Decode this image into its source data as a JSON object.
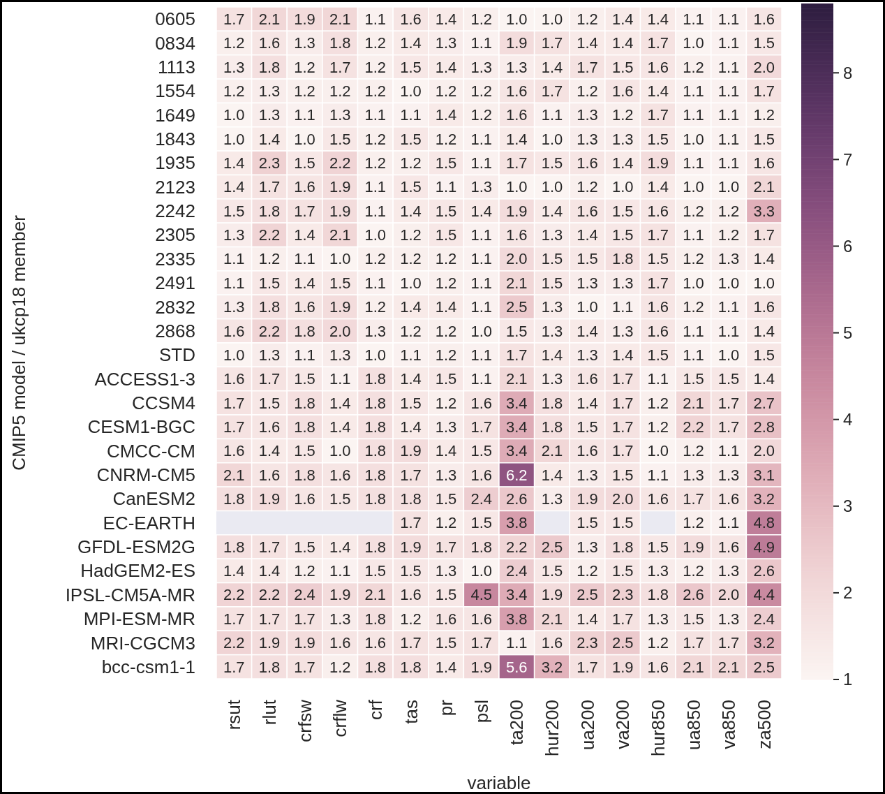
{
  "chart_data": {
    "type": "heatmap",
    "xlabel": "variable",
    "ylabel": "CMIP5 model / ukcp18 member",
    "categories": [
      "rsut",
      "rlut",
      "crfsw",
      "crflw",
      "crf",
      "tas",
      "pr",
      "psl",
      "ta200",
      "hur200",
      "ua200",
      "va200",
      "hur850",
      "ua850",
      "va850",
      "za500"
    ],
    "y_categories": [
      "0605",
      "0834",
      "1113",
      "1554",
      "1649",
      "1843",
      "1935",
      "2123",
      "2242",
      "2305",
      "2335",
      "2491",
      "2832",
      "2868",
      "STD",
      "ACCESS1-3",
      "CCSM4",
      "CESM1-BGC",
      "CMCC-CM",
      "CNRM-CM5",
      "CanESM2",
      "EC-EARTH",
      "GFDL-ESM2G",
      "HadGEM2-ES",
      "IPSL-CM5A-MR",
      "MPI-ESM-MR",
      "MRI-CGCM3",
      "bcc-csm1-1"
    ],
    "cells": [
      [
        1.7,
        2.1,
        1.9,
        2.1,
        1.1,
        1.6,
        1.4,
        1.2,
        1.0,
        1.0,
        1.2,
        1.4,
        1.4,
        1.1,
        1.1,
        1.6
      ],
      [
        1.2,
        1.6,
        1.3,
        1.8,
        1.2,
        1.4,
        1.3,
        1.1,
        1.9,
        1.7,
        1.4,
        1.4,
        1.7,
        1.0,
        1.1,
        1.5
      ],
      [
        1.3,
        1.8,
        1.2,
        1.7,
        1.2,
        1.5,
        1.4,
        1.3,
        1.3,
        1.4,
        1.7,
        1.5,
        1.6,
        1.2,
        1.1,
        2.0
      ],
      [
        1.2,
        1.3,
        1.2,
        1.2,
        1.2,
        1.0,
        1.2,
        1.2,
        1.6,
        1.7,
        1.2,
        1.6,
        1.4,
        1.1,
        1.1,
        1.7
      ],
      [
        1.0,
        1.3,
        1.1,
        1.3,
        1.1,
        1.1,
        1.4,
        1.2,
        1.6,
        1.1,
        1.3,
        1.2,
        1.7,
        1.1,
        1.1,
        1.2
      ],
      [
        1.0,
        1.4,
        1.0,
        1.5,
        1.2,
        1.5,
        1.2,
        1.1,
        1.4,
        1.0,
        1.3,
        1.3,
        1.5,
        1.0,
        1.1,
        1.5
      ],
      [
        1.4,
        2.3,
        1.5,
        2.2,
        1.2,
        1.2,
        1.5,
        1.1,
        1.7,
        1.5,
        1.6,
        1.4,
        1.9,
        1.1,
        1.1,
        1.6
      ],
      [
        1.4,
        1.7,
        1.6,
        1.9,
        1.1,
        1.5,
        1.1,
        1.3,
        1.0,
        1.0,
        1.2,
        1.0,
        1.4,
        1.0,
        1.0,
        2.1
      ],
      [
        1.5,
        1.8,
        1.7,
        1.9,
        1.1,
        1.4,
        1.5,
        1.4,
        1.9,
        1.4,
        1.6,
        1.5,
        1.6,
        1.2,
        1.2,
        3.3
      ],
      [
        1.3,
        2.2,
        1.4,
        2.1,
        1.0,
        1.2,
        1.5,
        1.1,
        1.6,
        1.3,
        1.4,
        1.5,
        1.7,
        1.1,
        1.2,
        1.7
      ],
      [
        1.1,
        1.2,
        1.1,
        1.0,
        1.2,
        1.2,
        1.2,
        1.1,
        2.0,
        1.5,
        1.5,
        1.8,
        1.5,
        1.2,
        1.3,
        1.4
      ],
      [
        1.1,
        1.5,
        1.4,
        1.5,
        1.1,
        1.0,
        1.2,
        1.1,
        2.1,
        1.5,
        1.3,
        1.3,
        1.7,
        1.0,
        1.0,
        1.0
      ],
      [
        1.3,
        1.8,
        1.6,
        1.9,
        1.2,
        1.4,
        1.4,
        1.1,
        2.5,
        1.3,
        1.0,
        1.1,
        1.6,
        1.2,
        1.1,
        1.6
      ],
      [
        1.6,
        2.2,
        1.8,
        2.0,
        1.3,
        1.2,
        1.2,
        1.0,
        1.5,
        1.3,
        1.4,
        1.3,
        1.6,
        1.1,
        1.1,
        1.4
      ],
      [
        1.0,
        1.3,
        1.1,
        1.3,
        1.0,
        1.1,
        1.2,
        1.1,
        1.7,
        1.4,
        1.3,
        1.4,
        1.5,
        1.1,
        1.0,
        1.5
      ],
      [
        1.6,
        1.7,
        1.5,
        1.1,
        1.8,
        1.4,
        1.5,
        1.1,
        2.1,
        1.3,
        1.6,
        1.7,
        1.1,
        1.5,
        1.5,
        1.4
      ],
      [
        1.7,
        1.5,
        1.8,
        1.4,
        1.8,
        1.5,
        1.2,
        1.6,
        3.4,
        1.8,
        1.4,
        1.7,
        1.2,
        2.1,
        1.7,
        2.7
      ],
      [
        1.7,
        1.6,
        1.8,
        1.4,
        1.8,
        1.4,
        1.3,
        1.7,
        3.4,
        1.8,
        1.5,
        1.7,
        1.2,
        2.2,
        1.7,
        2.8
      ],
      [
        1.6,
        1.4,
        1.5,
        1.0,
        1.8,
        1.9,
        1.4,
        1.5,
        3.4,
        2.1,
        1.6,
        1.7,
        1.0,
        1.2,
        1.1,
        2.0
      ],
      [
        2.1,
        1.6,
        1.8,
        1.6,
        1.8,
        1.7,
        1.3,
        1.6,
        6.2,
        1.4,
        1.3,
        1.5,
        1.1,
        1.3,
        1.3,
        3.1
      ],
      [
        1.8,
        1.9,
        1.6,
        1.5,
        1.8,
        1.8,
        1.5,
        2.4,
        2.6,
        1.3,
        1.9,
        2.0,
        1.6,
        1.7,
        1.6,
        3.2
      ],
      [
        null,
        null,
        null,
        null,
        null,
        1.7,
        1.2,
        1.5,
        3.8,
        null,
        1.5,
        1.5,
        null,
        1.2,
        1.1,
        4.8
      ],
      [
        1.8,
        1.7,
        1.5,
        1.4,
        1.8,
        1.9,
        1.7,
        1.8,
        2.2,
        2.5,
        1.3,
        1.8,
        1.5,
        1.9,
        1.6,
        4.9
      ],
      [
        1.4,
        1.4,
        1.2,
        1.1,
        1.5,
        1.5,
        1.3,
        1.0,
        2.4,
        1.5,
        1.2,
        1.5,
        1.3,
        1.2,
        1.3,
        2.6
      ],
      [
        2.2,
        2.2,
        2.4,
        1.9,
        2.1,
        1.6,
        1.5,
        4.5,
        3.4,
        1.9,
        2.5,
        2.3,
        1.8,
        2.6,
        2.0,
        4.4
      ],
      [
        1.7,
        1.7,
        1.7,
        1.3,
        1.8,
        1.2,
        1.6,
        1.6,
        3.8,
        2.1,
        1.4,
        1.7,
        1.3,
        1.5,
        1.3,
        2.4
      ],
      [
        2.2,
        1.9,
        1.9,
        1.6,
        1.6,
        1.7,
        1.5,
        1.7,
        1.1,
        1.6,
        2.3,
        2.5,
        1.2,
        1.7,
        1.7,
        3.2
      ],
      [
        1.7,
        1.8,
        1.7,
        1.2,
        1.8,
        1.8,
        1.4,
        1.9,
        5.6,
        3.2,
        1.7,
        1.9,
        1.6,
        2.1,
        2.1,
        2.5
      ]
    ],
    "cell_labels": [
      [
        "1.7",
        "2.1",
        "1.9",
        "2.1",
        "1.1",
        "1.6",
        "1.4",
        "1.2",
        "1.0",
        "1.0",
        "1.2",
        "1.4",
        "1.4",
        "1.1",
        "1.1",
        "1.6"
      ],
      [
        "1.2",
        "1.6",
        "1.3",
        "1.8",
        "1.2",
        "1.4",
        "1.3",
        "1.1",
        "1.9",
        "1.7",
        "1.4",
        "1.4",
        "1.7",
        "1.0",
        "1.1",
        "1.5"
      ],
      [
        "1.3",
        "1.8",
        "1.2",
        "1.7",
        "1.2",
        "1.5",
        "1.4",
        "1.3",
        "1.3",
        "1.4",
        "1.7",
        "1.5",
        "1.6",
        "1.2",
        "1.1",
        "2.0"
      ],
      [
        "1.2",
        "1.3",
        "1.2",
        "1.2",
        "1.2",
        "1.0",
        "1.2",
        "1.2",
        "1.6",
        "1.7",
        "1.2",
        "1.6",
        "1.4",
        "1.1",
        "1.1",
        "1.7"
      ],
      [
        "1.0",
        "1.3",
        "1.1",
        "1.3",
        "1.1",
        "1.1",
        "1.4",
        "1.2",
        "1.6",
        "1.1",
        "1.3",
        "1.2",
        "1.7",
        "1.1",
        "1.1",
        "1.2"
      ],
      [
        "1.0",
        "1.4",
        "1.0",
        "1.5",
        "1.2",
        "1.5",
        "1.2",
        "1.1",
        "1.4",
        "1.0",
        "1.3",
        "1.3",
        "1.5",
        "1.0",
        "1.1",
        "1.5"
      ],
      [
        "1.4",
        "2.3",
        "1.5",
        "2.2",
        "1.2",
        "1.2",
        "1.5",
        "1.1",
        "1.7",
        "1.5",
        "1.6",
        "1.4",
        "1.9",
        "1.1",
        "1.1",
        "1.6"
      ],
      [
        "1.4",
        "1.7",
        "1.6",
        "1.9",
        "1.1",
        "1.5",
        "1.1",
        "1.3",
        "1.0",
        "1.0",
        "1.2",
        "1.0",
        "1.4",
        "1.0",
        "1.0",
        "2.1"
      ],
      [
        "1.5",
        "1.8",
        "1.7",
        "1.9",
        "1.1",
        "1.4",
        "1.5",
        "1.4",
        "1.9",
        "1.4",
        "1.6",
        "1.5",
        "1.6",
        "1.2",
        "1.2",
        "3.3"
      ],
      [
        "1.3",
        "2.2",
        "1.4",
        "2.1",
        "1.0",
        "1.2",
        "1.5",
        "1.1",
        "1.6",
        "1.3",
        "1.4",
        "1.5",
        "1.7",
        "1.1",
        "1.2",
        "1.7"
      ],
      [
        "1.1",
        "1.2",
        "1.1",
        "1.0",
        "1.2",
        "1.2",
        "1.2",
        "1.1",
        "2.0",
        "1.5",
        "1.5",
        "1.8",
        "1.5",
        "1.2",
        "1.3",
        "1.4"
      ],
      [
        "1.1",
        "1.5",
        "1.4",
        "1.5",
        "1.1",
        "1.0",
        "1.2",
        "1.1",
        "2.1",
        "1.5",
        "1.3",
        "1.3",
        "1.7",
        "1.0",
        "1.0",
        "1.0"
      ],
      [
        "1.3",
        "1.8",
        "1.6",
        "1.9",
        "1.2",
        "1.4",
        "1.4",
        "1.1",
        "2.5",
        "1.3",
        "1.0",
        "1.1",
        "1.6",
        "1.2",
        "1.1",
        "1.6"
      ],
      [
        "1.6",
        "2.2",
        "1.8",
        "2.0",
        "1.3",
        "1.2",
        "1.2",
        "1.0",
        "1.5",
        "1.3",
        "1.4",
        "1.3",
        "1.6",
        "1.1",
        "1.1",
        "1.4"
      ],
      [
        "1.0",
        "1.3",
        "1.1",
        "1.3",
        "1.0",
        "1.1",
        "1.2",
        "1.1",
        "1.7",
        "1.4",
        "1.3",
        "1.4",
        "1.5",
        "1.1",
        "1.0",
        "1.5"
      ],
      [
        "1.6",
        "1.7",
        "1.5",
        "1.1",
        "1.8",
        "1.4",
        "1.5",
        "1.1",
        "2.1",
        "1.3",
        "1.6",
        "1.7",
        "1.1",
        "1.5",
        "1.5",
        "1.4"
      ],
      [
        "1.7",
        "1.5",
        "1.8",
        "1.4",
        "1.8",
        "1.5",
        "1.2",
        "1.6",
        "3.4",
        "1.8",
        "1.4",
        "1.7",
        "1.2",
        "2.1",
        "1.7",
        "2.7"
      ],
      [
        "1.7",
        "1.6",
        "1.8",
        "1.4",
        "1.8",
        "1.4",
        "1.3",
        "1.7",
        "3.4",
        "1.8",
        "1.5",
        "1.7",
        "1.2",
        "2.2",
        "1.7",
        "2.8"
      ],
      [
        "1.6",
        "1.4",
        "1.5",
        "1.0",
        "1.8",
        "1.9",
        "1.4",
        "1.5",
        "3.4",
        "2.1",
        "1.6",
        "1.7",
        "1.0",
        "1.2",
        "1.1",
        "2.0"
      ],
      [
        "2.1",
        "1.6",
        "1.8",
        "1.6",
        "1.8",
        "1.7",
        "1.3",
        "1.6",
        "6.2",
        "1.4",
        "1.3",
        "1.5",
        "1.1",
        "1.3",
        "1.3",
        "3.1"
      ],
      [
        "1.8",
        "1.9",
        "1.6",
        "1.5",
        "1.8",
        "1.8",
        "1.5",
        "2.4",
        "2.6",
        "1.3",
        "1.9",
        "2.0",
        "1.6",
        "1.7",
        "1.6",
        "3.2"
      ],
      [
        null,
        null,
        null,
        null,
        null,
        "1.7",
        "1.2",
        "1.5",
        "3.8",
        null,
        "1.5",
        "1.5",
        null,
        "1.2",
        "1.1",
        "4.8"
      ],
      [
        "1.8",
        "1.7",
        "1.5",
        "1.4",
        "1.8",
        "1.9",
        "1.7",
        "1.8",
        "2.2",
        "2.5",
        "1.3",
        "1.8",
        "1.5",
        "1.9",
        "1.6",
        "4.9"
      ],
      [
        "1.4",
        "1.4",
        "1.2",
        "1.1",
        "1.5",
        "1.5",
        "1.3",
        "1.0",
        "2.4",
        "1.5",
        "1.2",
        "1.5",
        "1.3",
        "1.2",
        "1.3",
        "2.6"
      ],
      [
        "2.2",
        "2.2",
        "2.4",
        "1.9",
        "2.1",
        "1.6",
        "1.5",
        "4.5",
        "3.4",
        "1.9",
        "2.5",
        "2.3",
        "1.8",
        "2.6",
        "2.0",
        "4.4"
      ],
      [
        "1.7",
        "1.7",
        "1.7",
        "1.3",
        "1.8",
        "1.2",
        "1.6",
        "1.6",
        "3.8",
        "2.1",
        "1.4",
        "1.7",
        "1.3",
        "1.5",
        "1.3",
        "2.4"
      ],
      [
        "2.2",
        "1.9",
        "1.9",
        "1.6",
        "1.6",
        "1.7",
        "1.5",
        "1.7",
        "1.1",
        "1.6",
        "2.3",
        "2.5",
        "1.2",
        "1.7",
        "1.7",
        "3.2"
      ],
      [
        "1.7",
        "1.8",
        "1.7",
        "1.2",
        "1.8",
        "1.8",
        "1.4",
        "1.9",
        "5.6",
        "3.2",
        "1.7",
        "1.9",
        "1.6",
        "2.1",
        "2.1",
        "2.5"
      ]
    ],
    "clim": [
      1,
      8.8
    ],
    "cticks": [
      1,
      2,
      3,
      4,
      5,
      6,
      7,
      8
    ]
  }
}
